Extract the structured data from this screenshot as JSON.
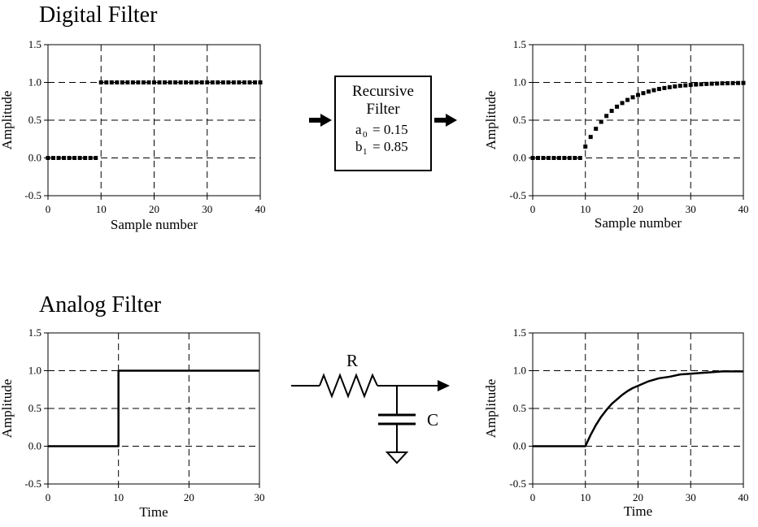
{
  "sections": {
    "digital_title": "Digital Filter",
    "analog_title": "Analog Filter"
  },
  "filter_box": {
    "line1": "Recursive",
    "line2": "Filter",
    "a0_symbol": "a",
    "a0_sub": "0",
    "a0_value": "= 0.15",
    "b1_symbol": "b",
    "b1_sub": "1",
    "b1_value": "= 0.85"
  },
  "rc_circuit": {
    "resistor_label": "R",
    "capacitor_label": "C"
  },
  "chart_data": [
    {
      "id": "digital-input",
      "type": "scatter",
      "xlabel": "Sample number",
      "ylabel": "Amplitude",
      "xlim": [
        0,
        40
      ],
      "ylim": [
        -0.5,
        1.5
      ],
      "xticks": [
        0,
        10,
        20,
        30,
        40
      ],
      "yticks": [
        "1.5",
        "1.0",
        "0.5",
        "0.0",
        "-0.5"
      ],
      "grid": "dashed",
      "x": [
        0,
        1,
        2,
        3,
        4,
        5,
        6,
        7,
        8,
        9,
        10,
        11,
        12,
        13,
        14,
        15,
        16,
        17,
        18,
        19,
        20,
        21,
        22,
        23,
        24,
        25,
        26,
        27,
        28,
        29,
        30,
        31,
        32,
        33,
        34,
        35,
        36,
        37,
        38,
        39,
        40
      ],
      "y": [
        0,
        0,
        0,
        0,
        0,
        0,
        0,
        0,
        0,
        0,
        1,
        1,
        1,
        1,
        1,
        1,
        1,
        1,
        1,
        1,
        1,
        1,
        1,
        1,
        1,
        1,
        1,
        1,
        1,
        1,
        1,
        1,
        1,
        1,
        1,
        1,
        1,
        1,
        1,
        1,
        1
      ]
    },
    {
      "id": "digital-output",
      "type": "scatter",
      "xlabel": "Sample number",
      "ylabel": "Amplitude",
      "xlim": [
        0,
        40
      ],
      "ylim": [
        -0.5,
        1.5
      ],
      "xticks": [
        0,
        10,
        20,
        30,
        40
      ],
      "yticks": [
        "1.5",
        "1.0",
        "0.5",
        "0.0",
        "-0.5"
      ],
      "grid": "dashed",
      "x": [
        0,
        1,
        2,
        3,
        4,
        5,
        6,
        7,
        8,
        9,
        10,
        11,
        12,
        13,
        14,
        15,
        16,
        17,
        18,
        19,
        20,
        21,
        22,
        23,
        24,
        25,
        26,
        27,
        28,
        29,
        30,
        31,
        32,
        33,
        34,
        35,
        36,
        37,
        38,
        39,
        40
      ],
      "y": [
        0,
        0,
        0,
        0,
        0,
        0,
        0,
        0,
        0,
        0,
        0.15,
        0.278,
        0.386,
        0.478,
        0.556,
        0.623,
        0.679,
        0.727,
        0.768,
        0.803,
        0.833,
        0.858,
        0.879,
        0.897,
        0.913,
        0.926,
        0.937,
        0.947,
        0.955,
        0.961,
        0.967,
        0.972,
        0.976,
        0.98,
        0.983,
        0.985,
        0.988,
        0.989,
        0.991,
        0.992,
        0.993
      ]
    },
    {
      "id": "analog-input",
      "type": "line",
      "xlabel": "Time",
      "ylabel": "Amplitude",
      "xlim": [
        0,
        30
      ],
      "ylim": [
        -0.5,
        1.5
      ],
      "xticks": [
        0,
        10,
        20,
        30
      ],
      "yticks": [
        "1.5",
        "1.0",
        "0.5",
        "0.0",
        "-0.5"
      ],
      "grid": "dashed",
      "x": [
        0,
        10,
        10,
        30
      ],
      "y": [
        0,
        0,
        1,
        1
      ]
    },
    {
      "id": "analog-output",
      "type": "line",
      "xlabel": "Time",
      "ylabel": "Amplitude",
      "xlim": [
        0,
        40
      ],
      "ylim": [
        -0.5,
        1.5
      ],
      "xticks": [
        0,
        10,
        20,
        30,
        40
      ],
      "yticks": [
        "1.5",
        "1.0",
        "0.5",
        "0.0",
        "-0.5"
      ],
      "grid": "dashed",
      "x": [
        0,
        10,
        11,
        12,
        13,
        14,
        15,
        16,
        17,
        18,
        19,
        20,
        22,
        24,
        26,
        28,
        30,
        32,
        34,
        36,
        38,
        40
      ],
      "y": [
        0,
        0,
        0.15,
        0.28,
        0.39,
        0.48,
        0.56,
        0.62,
        0.68,
        0.73,
        0.77,
        0.8,
        0.86,
        0.9,
        0.92,
        0.95,
        0.96,
        0.97,
        0.98,
        0.99,
        0.99,
        0.99
      ]
    }
  ]
}
